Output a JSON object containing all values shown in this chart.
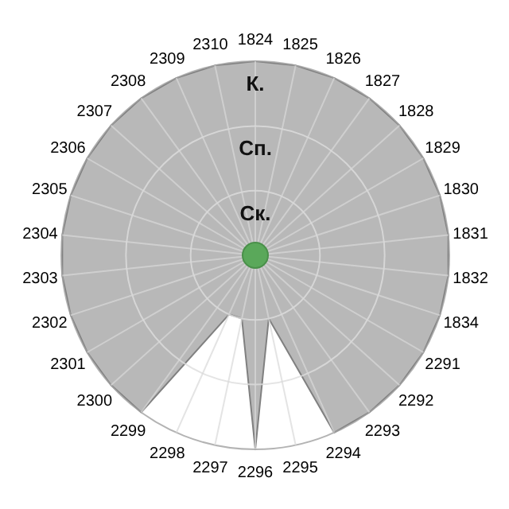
{
  "chart_data": {
    "type": "radar",
    "categories": [
      "1824",
      "1825",
      "1826",
      "1827",
      "1828",
      "1829",
      "1830",
      "1831",
      "1832",
      "1834",
      "2291",
      "2292",
      "2293",
      "2294",
      "2295",
      "2296",
      "2297",
      "2298",
      "2299",
      "2300",
      "2301",
      "2302",
      "2303",
      "2304",
      "2305",
      "2306",
      "2307",
      "2308",
      "2309",
      "2310"
    ],
    "series": [
      {
        "color": "#b8b8b8",
        "values": [
          3,
          3,
          3,
          3,
          3,
          3,
          3,
          3,
          3,
          3,
          3,
          3,
          3,
          3,
          1,
          3,
          1,
          1,
          3,
          3,
          3,
          3,
          3,
          3,
          3,
          3,
          3,
          3,
          3,
          3
        ]
      }
    ],
    "ylim": [
      0,
      3
    ],
    "yticks": [
      {
        "value": 1,
        "label": "Ск."
      },
      {
        "value": 2,
        "label": "Сп."
      },
      {
        "value": 3,
        "label": "К."
      }
    ],
    "grid": true
  }
}
